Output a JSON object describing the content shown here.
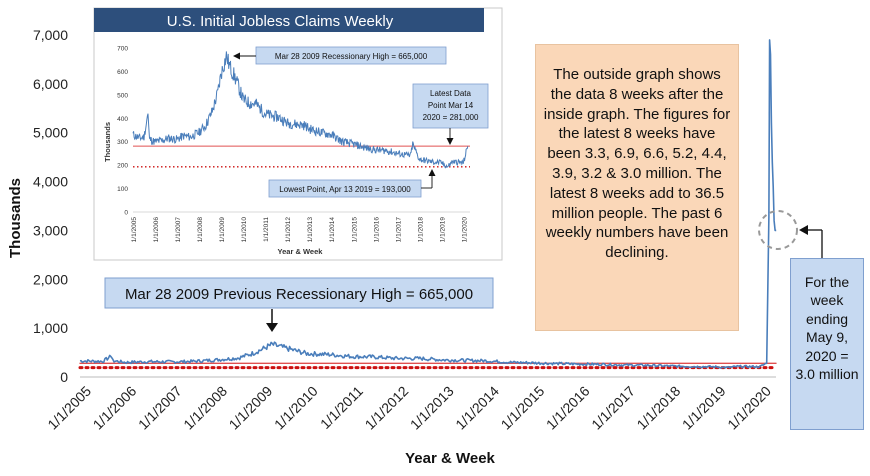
{
  "chart_data": [
    {
      "type": "line",
      "title": "",
      "xlabel": "Year & Week",
      "ylabel": "Thousands",
      "ylim": [
        0,
        7000
      ],
      "yticks": [
        "0",
        "1,000",
        "2,000",
        "3,000",
        "4,000",
        "5,000",
        "6,000",
        "7,000"
      ],
      "xticks": [
        "1/1/2005",
        "1/1/2006",
        "1/1/2007",
        "1/1/2008",
        "1/1/2009",
        "1/1/2010",
        "1/1/2011",
        "1/1/2012",
        "1/1/2013",
        "1/1/2014",
        "1/1/2015",
        "1/1/2016",
        "1/1/2017",
        "1/1/2018",
        "1/1/2019",
        "1/1/2020"
      ],
      "series": [
        {
          "x": [
            2005.0,
            2005.5,
            2005.68,
            2005.75,
            2006.0,
            2006.5,
            2007.0,
            2007.5,
            2008.0,
            2008.5,
            2008.8,
            2009.0,
            2009.24,
            2009.5,
            2010.0,
            2010.5,
            2011.0,
            2011.5,
            2012.0,
            2012.5,
            2013.0,
            2013.5,
            2014.0,
            2014.5,
            2015.0,
            2015.5,
            2016.0,
            2016.5,
            2017.0,
            2017.5,
            2018.0,
            2018.5,
            2019.0,
            2019.28,
            2019.5,
            2020.0,
            2020.15,
            2020.2,
            2020.215,
            2020.235,
            2020.255,
            2020.275,
            2020.295,
            2020.315,
            2020.335,
            2020.36
          ],
          "values": [
            330,
            320,
            420,
            330,
            300,
            315,
            310,
            320,
            350,
            390,
            480,
            560,
            665,
            600,
            480,
            460,
            420,
            410,
            380,
            380,
            350,
            340,
            330,
            300,
            290,
            275,
            265,
            260,
            245,
            240,
            225,
            215,
            210,
            193,
            215,
            210,
            281,
            3300,
            6900,
            6600,
            5200,
            4400,
            3900,
            3200,
            3000,
            3000
          ]
        }
      ],
      "reference_lines": [
        {
          "style": "solid",
          "color": "#e05050",
          "y": 281
        },
        {
          "style": "dotted",
          "color": "#cc1111",
          "y": 193
        }
      ],
      "annotations": [
        "Mar 28 2009 Previous Recessionary High = 665,000",
        "For the week ending May 9, 2020 = 3.0 million"
      ]
    },
    {
      "type": "line",
      "title": "U.S. Initial Jobless Claims Weekly",
      "xlabel": "Year & Week",
      "ylabel": "Thousands",
      "ylim": [
        0,
        700
      ],
      "yticks": [
        "0",
        "100",
        "200",
        "300",
        "400",
        "500",
        "600",
        "700"
      ],
      "xticks": [
        "1/1/2005",
        "1/1/2006",
        "1/1/2007",
        "1/1/2008",
        "1/1/2009",
        "1/1/2010",
        "1/1/2011",
        "1/1/2012",
        "1/1/2013",
        "1/1/2014",
        "1/1/2015",
        "1/1/2016",
        "1/1/2017",
        "1/1/2018",
        "1/1/2019",
        "1/1/2020"
      ],
      "series": [
        {
          "x": [
            2005.0,
            2005.3,
            2005.5,
            2005.68,
            2005.75,
            2006.0,
            2006.3,
            2006.6,
            2007.0,
            2007.3,
            2007.6,
            2008.0,
            2008.3,
            2008.6,
            2008.85,
            2009.0,
            2009.24,
            2009.4,
            2009.7,
            2010.0,
            2010.3,
            2010.6,
            2011.0,
            2011.3,
            2011.6,
            2012.0,
            2012.4,
            2012.8,
            2013.0,
            2013.5,
            2014.0,
            2014.5,
            2015.0,
            2015.5,
            2016.0,
            2016.5,
            2017.0,
            2017.6,
            2017.7,
            2018.0,
            2018.5,
            2019.0,
            2019.28,
            2019.5,
            2019.8,
            2020.0,
            2020.2
          ],
          "values": [
            330,
            315,
            320,
            420,
            310,
            300,
            305,
            315,
            310,
            325,
            320,
            340,
            370,
            430,
            510,
            590,
            665,
            620,
            560,
            480,
            465,
            460,
            420,
            410,
            405,
            380,
            375,
            370,
            355,
            340,
            330,
            300,
            290,
            275,
            265,
            262,
            250,
            240,
            290,
            225,
            215,
            210,
            193,
            215,
            212,
            210,
            281
          ]
        }
      ],
      "reference_lines": [
        {
          "style": "solid",
          "color": "#e05050",
          "y": 281
        },
        {
          "style": "dotted",
          "color": "#cc1111",
          "y": 193
        }
      ],
      "annotations": [
        "Mar 28 2009 Recessionary High = 665,000",
        "Latest Data Point Mar 14 2020 = 281,000",
        "Lowest Point, Apr 13 2019 = 193,000"
      ]
    }
  ],
  "notes": {
    "peach_box": "The outside graph shows the data 8 weeks after the inside graph. The figures for the latest 8 weeks have been 3.3, 6.9, 6.6, 5.2, 4.4, 3.9, 3.2 & 3.0 million. The latest 8 weeks add to 36.5 million people. The past 6 weekly numbers have been declining.",
    "week_ending_box": "For the week ending May 9, 2020 = 3.0 million"
  },
  "colors": {
    "line": "#4a7ebb",
    "reference_solid": "#e05050",
    "reference_dotted": "#cc1111",
    "inset_title_bg": "#2d4f7c",
    "peach_box": "#fad7b8",
    "blue_box": "#c6d9f1",
    "box_border": "#7f9fcf"
  }
}
